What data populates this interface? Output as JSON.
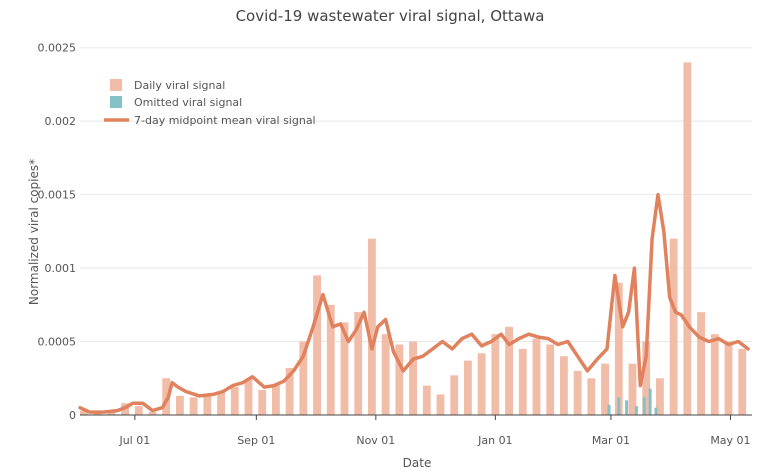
{
  "chart_data": {
    "type": "bar",
    "title": "Covid-19 wastewater viral signal, Ottawa",
    "xlabel": "Date",
    "ylabel": "Normalized viral copies*",
    "ylim": [
      0,
      0.0026
    ],
    "yticks": [
      0,
      0.0005,
      0.001,
      0.0015,
      0.002,
      0.0025
    ],
    "ytick_labels": [
      "0",
      "0.0005",
      "0.001",
      "0.0015",
      "0.002",
      "0.0025"
    ],
    "x_range": [
      "2020-06-03",
      "2021-05-12"
    ],
    "xticks": [
      "2020-07-01",
      "2020-09-01",
      "2020-11-01",
      "2021-01-01",
      "2021-03-01",
      "2021-05-01"
    ],
    "xtick_labels": [
      "Jul 01",
      "Sep 01",
      "Nov 01",
      "Jan 01",
      "Mar 01",
      "May 01"
    ],
    "grid": "horizontal",
    "legend_position": "top-left",
    "colors": {
      "daily": "#f1bca8",
      "omitted": "#84c2c7",
      "mean": "#e0825d",
      "grid": "#e8e8e8",
      "axis": "#444444"
    },
    "series": [
      {
        "name": "Daily viral signal",
        "kind": "bar",
        "x": [
          "2020-06-05",
          "2020-06-12",
          "2020-06-19",
          "2020-06-26",
          "2020-07-03",
          "2020-07-10",
          "2020-07-17",
          "2020-07-24",
          "2020-07-31",
          "2020-08-07",
          "2020-08-14",
          "2020-08-21",
          "2020-08-28",
          "2020-09-04",
          "2020-09-11",
          "2020-09-18",
          "2020-09-25",
          "2020-10-02",
          "2020-10-09",
          "2020-10-16",
          "2020-10-23",
          "2020-10-30",
          "2020-11-06",
          "2020-11-13",
          "2020-11-20",
          "2020-11-27",
          "2020-12-04",
          "2020-12-11",
          "2020-12-18",
          "2020-12-25",
          "2021-01-01",
          "2021-01-08",
          "2021-01-15",
          "2021-01-22",
          "2021-01-29",
          "2021-02-05",
          "2021-02-12",
          "2021-02-19",
          "2021-02-26",
          "2021-03-05",
          "2021-03-12",
          "2021-03-19",
          "2021-03-26",
          "2021-04-02",
          "2021-04-09",
          "2021-04-16",
          "2021-04-23",
          "2021-04-30",
          "2021-05-07"
        ],
        "values": [
          3e-05,
          2e-05,
          3e-05,
          8e-05,
          6e-05,
          2e-05,
          0.00025,
          0.00013,
          0.00012,
          0.00014,
          0.00016,
          0.00019,
          0.00024,
          0.00017,
          0.0002,
          0.00032,
          0.0005,
          0.00095,
          0.00075,
          0.00063,
          0.0007,
          0.0012,
          0.00055,
          0.00048,
          0.0005,
          0.0002,
          0.00014,
          0.00027,
          0.00037,
          0.00042,
          0.00055,
          0.0006,
          0.00045,
          0.00052,
          0.00048,
          0.0004,
          0.0003,
          0.00025,
          0.00035,
          0.0009,
          0.00035,
          0.0005,
          0.00025,
          0.0012,
          0.0024,
          0.0007,
          0.00055,
          0.0005,
          0.00045
        ]
      },
      {
        "name": "Omitted viral signal",
        "kind": "bar",
        "x": [
          "2021-02-28",
          "2021-03-05",
          "2021-03-09",
          "2021-03-14",
          "2021-03-18",
          "2021-03-21",
          "2021-03-24"
        ],
        "values": [
          7e-05,
          0.00012,
          0.0001,
          6e-05,
          0.00012,
          0.00018,
          5e-05
        ]
      },
      {
        "name": "7-day midpoint mean viral signal",
        "kind": "line",
        "x": [
          "2020-06-03",
          "2020-06-08",
          "2020-06-15",
          "2020-06-22",
          "2020-06-26",
          "2020-06-30",
          "2020-07-05",
          "2020-07-10",
          "2020-07-15",
          "2020-07-18",
          "2020-07-20",
          "2020-07-23",
          "2020-07-27",
          "2020-08-03",
          "2020-08-10",
          "2020-08-15",
          "2020-08-20",
          "2020-08-25",
          "2020-08-30",
          "2020-09-05",
          "2020-09-10",
          "2020-09-15",
          "2020-09-20",
          "2020-09-25",
          "2020-09-30",
          "2020-10-05",
          "2020-10-10",
          "2020-10-14",
          "2020-10-18",
          "2020-10-22",
          "2020-10-26",
          "2020-10-30",
          "2020-11-02",
          "2020-11-06",
          "2020-11-10",
          "2020-11-15",
          "2020-11-20",
          "2020-11-25",
          "2020-11-30",
          "2020-12-05",
          "2020-12-10",
          "2020-12-15",
          "2020-12-20",
          "2020-12-25",
          "2020-12-30",
          "2021-01-04",
          "2021-01-08",
          "2021-01-13",
          "2021-01-18",
          "2021-01-23",
          "2021-01-28",
          "2021-02-02",
          "2021-02-07",
          "2021-02-12",
          "2021-02-17",
          "2021-02-22",
          "2021-02-27",
          "2021-03-03",
          "2021-03-07",
          "2021-03-10",
          "2021-03-13",
          "2021-03-16",
          "2021-03-19",
          "2021-03-22",
          "2021-03-25",
          "2021-03-28",
          "2021-03-31",
          "2021-04-03",
          "2021-04-06",
          "2021-04-10",
          "2021-04-15",
          "2021-04-20",
          "2021-04-25",
          "2021-04-30",
          "2021-05-05",
          "2021-05-10"
        ],
        "values": [
          5e-05,
          2e-05,
          2e-05,
          3e-05,
          5e-05,
          8e-05,
          8e-05,
          3e-05,
          5e-05,
          0.00012,
          0.00022,
          0.00019,
          0.00016,
          0.00013,
          0.00014,
          0.00016,
          0.0002,
          0.00022,
          0.00026,
          0.00019,
          0.0002,
          0.00023,
          0.0003,
          0.0004,
          0.0006,
          0.00082,
          0.0006,
          0.00062,
          0.0005,
          0.00058,
          0.0007,
          0.00045,
          0.0006,
          0.00065,
          0.00043,
          0.0003,
          0.00038,
          0.0004,
          0.00045,
          0.0005,
          0.00045,
          0.00052,
          0.00055,
          0.00047,
          0.0005,
          0.00055,
          0.00048,
          0.00052,
          0.00055,
          0.00053,
          0.00052,
          0.00048,
          0.0005,
          0.0004,
          0.0003,
          0.00038,
          0.00045,
          0.00095,
          0.0006,
          0.0007,
          0.001,
          0.0002,
          0.0004,
          0.0012,
          0.0015,
          0.00125,
          0.0008,
          0.0007,
          0.00068,
          0.0006,
          0.00053,
          0.0005,
          0.00052,
          0.00048,
          0.0005,
          0.00045
        ]
      }
    ]
  }
}
